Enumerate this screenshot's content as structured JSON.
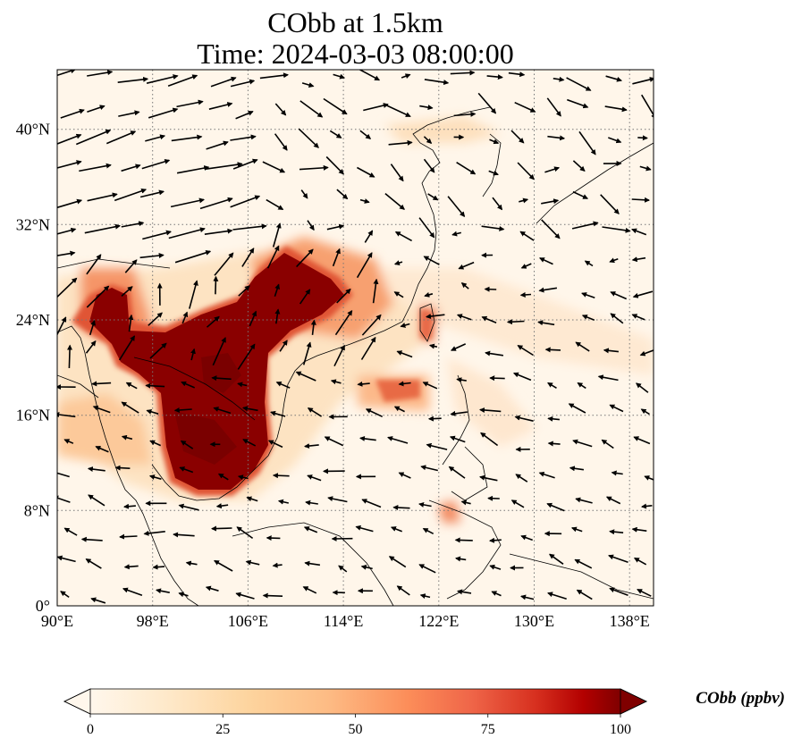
{
  "title": {
    "line1": "CObb at 1.5km",
    "line2": "Time: 2024-03-03 08:00:00"
  },
  "map": {
    "lon_range": [
      90,
      140
    ],
    "lat_range": [
      0,
      45
    ],
    "lon_ticks": [
      "90°E",
      "98°E",
      "106°E",
      "114°E",
      "122°E",
      "130°E",
      "138°E"
    ],
    "lat_ticks": [
      "0°",
      "8°N",
      "16°N",
      "24°N",
      "32°N",
      "40°N"
    ],
    "gridlines": "dotted",
    "colormap": "OrRd",
    "colors": {
      "low": "#fff7ec",
      "mid": "#fc8d59",
      "high": "#7f0000",
      "coast": "#000000",
      "grid": "#777777"
    }
  },
  "colorbar": {
    "label": "CObb (ppbv)",
    "ticks": [
      "0",
      "25",
      "50",
      "75",
      "100"
    ],
    "range": [
      0,
      100
    ],
    "extend": "both"
  },
  "wind": {
    "units": "arrow vectors",
    "color": "#000000"
  }
}
